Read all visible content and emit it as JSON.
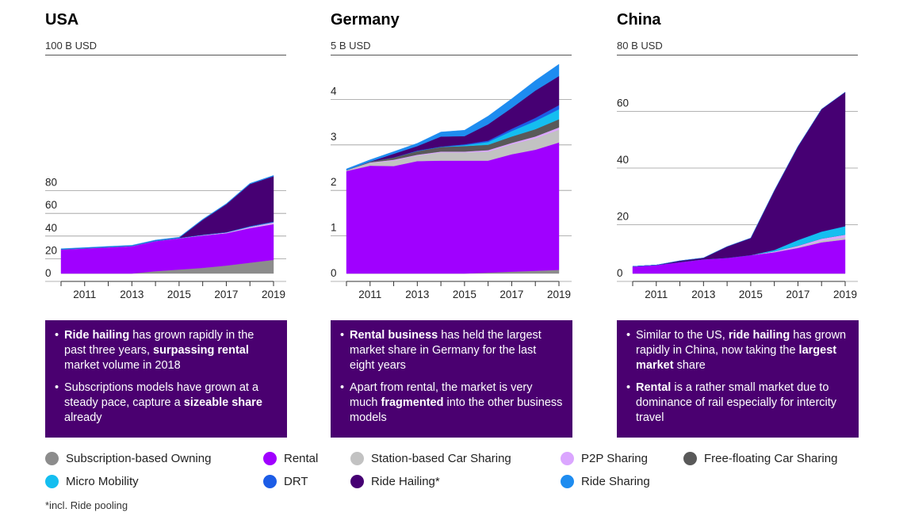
{
  "colors": {
    "owning": "#8c8c8c",
    "rental": "#a000ff",
    "station": "#c2c2c2",
    "p2p": "#dba6ff",
    "freefloat": "#595959",
    "micro": "#14bef0",
    "drt": "#1c5ce6",
    "hailing": "#460073",
    "sharing": "#1e8cf0",
    "box": "#4a0070"
  },
  "legend": [
    {
      "key": "owning",
      "label": "Subscription-based Owning"
    },
    {
      "key": "rental",
      "label": "Rental"
    },
    {
      "key": "station",
      "label": "Station-based Car Sharing"
    },
    {
      "key": "p2p",
      "label": "P2P Sharing"
    },
    {
      "key": "freefloat",
      "label": "Free-floating Car Sharing"
    },
    {
      "key": "micro",
      "label": "Micro Mobility"
    },
    {
      "key": "drt",
      "label": "DRT"
    },
    {
      "key": "hailing",
      "label": "Ride Hailing*"
    },
    {
      "key": "sharing",
      "label": "Ride Sharing"
    }
  ],
  "footnote": "*incl. Ride pooling",
  "chart_data": [
    {
      "type": "area",
      "title": "USA",
      "ylabel": "100 B USD",
      "x": [
        2010,
        2011,
        2012,
        2013,
        2014,
        2015,
        2016,
        2017,
        2018,
        2019
      ],
      "xticks": [
        "2011",
        "2013",
        "2015",
        "2017",
        "2019"
      ],
      "yticks": [
        "0",
        "20",
        "40",
        "60",
        "80"
      ],
      "ylim": [
        0,
        100
      ],
      "stacked": true,
      "series": [
        {
          "key": "owning",
          "values": [
            0,
            0,
            0,
            0,
            2,
            3.5,
            5,
            7,
            9.5,
            12
          ]
        },
        {
          "key": "rental",
          "values": [
            21,
            22,
            23,
            24,
            26.5,
            27.5,
            28.5,
            28.5,
            30.5,
            31.5
          ]
        },
        {
          "key": "station",
          "values": [
            0.2,
            0.2,
            0.2,
            0.2,
            0.2,
            0.2,
            0.2,
            0.2,
            0.2,
            0.2
          ]
        },
        {
          "key": "p2p",
          "values": [
            0,
            0,
            0,
            0,
            0,
            0,
            0.3,
            0.5,
            1.0,
            1.5
          ]
        },
        {
          "key": "freefloat",
          "values": [
            0,
            0,
            0,
            0,
            0,
            0,
            0,
            0,
            0,
            0
          ]
        },
        {
          "key": "micro",
          "values": [
            0,
            0,
            0,
            0,
            0,
            0,
            0,
            0,
            0.3,
            0.3
          ]
        },
        {
          "key": "drt",
          "values": [
            0.2,
            0.2,
            0.2,
            0.2,
            0.3,
            0.3,
            0.3,
            0.3,
            0.3,
            0.3
          ]
        },
        {
          "key": "hailing",
          "values": [
            0,
            0,
            0,
            0,
            0,
            0,
            13,
            24.5,
            37,
            40
          ]
        },
        {
          "key": "sharing",
          "values": [
            0.5,
            0.5,
            0.5,
            0.5,
            0.5,
            0.5,
            0.6,
            0.6,
            0.7,
            0.7
          ]
        }
      ]
    },
    {
      "type": "area",
      "title": "Germany",
      "ylabel": "5 B USD",
      "x": [
        2010,
        2011,
        2012,
        2013,
        2014,
        2015,
        2016,
        2017,
        2018,
        2019
      ],
      "xticks": [
        "2011",
        "2013",
        "2015",
        "2017",
        "2019"
      ],
      "yticks": [
        "0",
        "1",
        "2",
        "3",
        "4"
      ],
      "ylim": [
        0,
        5
      ],
      "stacked": true,
      "series": [
        {
          "key": "owning",
          "values": [
            0,
            0,
            0,
            0,
            0,
            0,
            0.02,
            0.04,
            0.06,
            0.08
          ]
        },
        {
          "key": "rental",
          "values": [
            2.25,
            2.37,
            2.36,
            2.47,
            2.48,
            2.48,
            2.46,
            2.58,
            2.66,
            2.8
          ]
        },
        {
          "key": "station",
          "values": [
            0.02,
            0.06,
            0.12,
            0.12,
            0.18,
            0.18,
            0.2,
            0.22,
            0.25,
            0.28
          ]
        },
        {
          "key": "p2p",
          "values": [
            0,
            0.01,
            0.02,
            0.02,
            0.02,
            0.02,
            0.03,
            0.03,
            0.04,
            0.05
          ]
        },
        {
          "key": "freefloat",
          "values": [
            0,
            0.02,
            0.05,
            0.08,
            0.1,
            0.12,
            0.12,
            0.14,
            0.16,
            0.18
          ]
        },
        {
          "key": "micro",
          "values": [
            0,
            0,
            0,
            0,
            0,
            0.02,
            0.06,
            0.12,
            0.18,
            0.22
          ]
        },
        {
          "key": "drt",
          "values": [
            0,
            0,
            0,
            0.01,
            0.01,
            0.02,
            0.03,
            0.05,
            0.07,
            0.09
          ]
        },
        {
          "key": "hailing",
          "values": [
            0,
            0,
            0.08,
            0.1,
            0.22,
            0.18,
            0.36,
            0.46,
            0.6,
            0.64
          ]
        },
        {
          "key": "sharing",
          "values": [
            0.03,
            0.04,
            0.05,
            0.06,
            0.1,
            0.13,
            0.18,
            0.2,
            0.22,
            0.26
          ]
        }
      ]
    },
    {
      "type": "area",
      "title": "China",
      "ylabel": "80 B USD",
      "x": [
        2010,
        2011,
        2012,
        2013,
        2014,
        2015,
        2016,
        2017,
        2018,
        2019
      ],
      "xticks": [
        "2011",
        "2013",
        "2015",
        "2017",
        "2019"
      ],
      "yticks": [
        "0",
        "20",
        "40",
        "60"
      ],
      "ylim": [
        0,
        80
      ],
      "stacked": true,
      "series": [
        {
          "key": "owning",
          "values": [
            0,
            0,
            0,
            0,
            0,
            0,
            0,
            0,
            0,
            0
          ]
        },
        {
          "key": "rental",
          "values": [
            2.5,
            3,
            4,
            5,
            5.5,
            6.5,
            7.5,
            9,
            11,
            12
          ]
        },
        {
          "key": "station",
          "values": [
            0,
            0,
            0,
            0,
            0,
            0,
            0,
            0.3,
            0.5,
            0.7
          ]
        },
        {
          "key": "p2p",
          "values": [
            0,
            0,
            0,
            0,
            0,
            0,
            0.3,
            0.5,
            0.8,
            1.0
          ]
        },
        {
          "key": "freefloat",
          "values": [
            0,
            0,
            0,
            0,
            0,
            0,
            0,
            0,
            0,
            0
          ]
        },
        {
          "key": "micro",
          "values": [
            0,
            0,
            0,
            0,
            0,
            0,
            0.5,
            2,
            2.5,
            3
          ]
        },
        {
          "key": "drt",
          "values": [
            0,
            0,
            0,
            0,
            0,
            0,
            0,
            0,
            0,
            0
          ]
        },
        {
          "key": "hailing",
          "values": [
            0,
            0,
            0.5,
            0.5,
            4,
            6,
            21,
            33,
            43.2,
            47.3
          ]
        },
        {
          "key": "sharing",
          "values": [
            0,
            0,
            0,
            0,
            0,
            0,
            0,
            0,
            0,
            0
          ]
        }
      ]
    }
  ],
  "notes": [
    {
      "bullets": [
        [
          {
            "t": "Ride hailing",
            "b": true
          },
          {
            "t": " has grown rapidly in the past three years, ",
            "b": false
          },
          {
            "t": "surpassing rental",
            "b": true
          },
          {
            "t": " market volume in 2018",
            "b": false
          }
        ],
        [
          {
            "t": "Subscriptions models have grown at a steady pace, capture a ",
            "b": false
          },
          {
            "t": "sizeable share",
            "b": true
          },
          {
            "t": " already",
            "b": false
          }
        ]
      ]
    },
    {
      "bullets": [
        [
          {
            "t": "Rental business",
            "b": true
          },
          {
            "t": " has held the largest market share in Germany for the last eight years",
            "b": false
          }
        ],
        [
          {
            "t": "Apart from rental, the market is very much ",
            "b": false
          },
          {
            "t": "fragmented",
            "b": true
          },
          {
            "t": " into the other business models",
            "b": false
          }
        ]
      ]
    },
    {
      "bullets": [
        [
          {
            "t": "Similar to the US, ",
            "b": false
          },
          {
            "t": "ride hailing",
            "b": true
          },
          {
            "t": " has grown rapidly in China, now taking the ",
            "b": false
          },
          {
            "t": "largest market",
            "b": true
          },
          {
            "t": " share",
            "b": false
          }
        ],
        [
          {
            "t": "Rental",
            "b": true
          },
          {
            "t": " is a rather small market due to dominance of rail especially for intercity travel",
            "b": false
          }
        ]
      ]
    }
  ]
}
